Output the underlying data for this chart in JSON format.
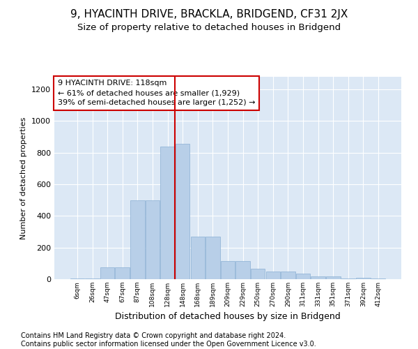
{
  "title": "9, HYACINTH DRIVE, BRACKLA, BRIDGEND, CF31 2JX",
  "subtitle": "Size of property relative to detached houses in Bridgend",
  "xlabel": "Distribution of detached houses by size in Bridgend",
  "ylabel": "Number of detached properties",
  "bar_color": "#b8cfe8",
  "bar_edge_color": "#8aafd4",
  "background_color": "#dce8f5",
  "grid_color": "#ffffff",
  "categories": [
    "6sqm",
    "26sqm",
    "47sqm",
    "67sqm",
    "87sqm",
    "108sqm",
    "128sqm",
    "148sqm",
    "168sqm",
    "189sqm",
    "209sqm",
    "229sqm",
    "250sqm",
    "270sqm",
    "290sqm",
    "311sqm",
    "331sqm",
    "351sqm",
    "371sqm",
    "392sqm",
    "412sqm"
  ],
  "values": [
    5,
    5,
    75,
    75,
    500,
    500,
    840,
    855,
    270,
    270,
    115,
    115,
    65,
    50,
    50,
    35,
    18,
    18,
    5,
    8,
    5
  ],
  "ylim": [
    0,
    1280
  ],
  "yticks": [
    0,
    200,
    400,
    600,
    800,
    1000,
    1200
  ],
  "vline_x": 6.5,
  "vline_color": "#cc0000",
  "annotation_box_text": "9 HYACINTH DRIVE: 118sqm\n← 61% of detached houses are smaller (1,929)\n39% of semi-detached houses are larger (1,252) →",
  "footer_text": "Contains HM Land Registry data © Crown copyright and database right 2024.\nContains public sector information licensed under the Open Government Licence v3.0.",
  "title_fontsize": 11,
  "subtitle_fontsize": 9.5,
  "annotation_fontsize": 8,
  "footer_fontsize": 7,
  "ylabel_fontsize": 8,
  "xlabel_fontsize": 9
}
